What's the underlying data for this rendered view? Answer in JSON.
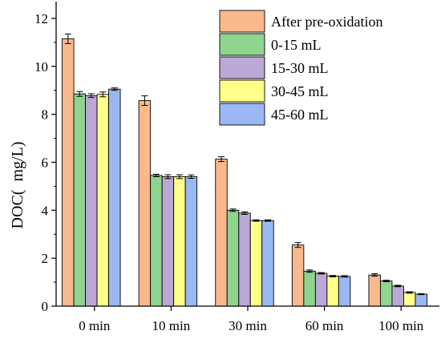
{
  "chart_data": {
    "type": "bar",
    "title": "",
    "xlabel": "",
    "ylabel": "DOC(  mg/L)",
    "ylim": [
      0,
      12.7
    ],
    "yticks": [
      0,
      2,
      4,
      6,
      8,
      10,
      12
    ],
    "grid": false,
    "legend_position": "top-right",
    "categories": [
      "0 min",
      "10 min",
      "30 min",
      "60 min",
      "100 min"
    ],
    "series": [
      {
        "name": "After pre-oxidation",
        "color": "#f9b98d",
        "values": [
          11.15,
          8.57,
          6.13,
          2.55,
          1.3
        ],
        "errors": [
          0.2,
          0.2,
          0.1,
          0.1,
          0.05
        ]
      },
      {
        "name": "0-15 mL",
        "color": "#8fd48f",
        "values": [
          8.85,
          5.45,
          4.0,
          1.46,
          1.05
        ],
        "errors": [
          0.1,
          0.05,
          0.05,
          0.05,
          0.03
        ]
      },
      {
        "name": "15-30 mL",
        "color": "#bca8d6",
        "values": [
          8.78,
          5.4,
          3.88,
          1.37,
          0.84
        ],
        "errors": [
          0.08,
          0.08,
          0.05,
          0.03,
          0.03
        ]
      },
      {
        "name": "30-45 mL",
        "color": "#ffff8a",
        "values": [
          8.83,
          5.4,
          3.57,
          1.25,
          0.57
        ],
        "errors": [
          0.1,
          0.08,
          0.03,
          0.03,
          0.03
        ]
      },
      {
        "name": "45-60 mL",
        "color": "#9ab8f3",
        "values": [
          9.05,
          5.4,
          3.57,
          1.24,
          0.5
        ],
        "errors": [
          0.05,
          0.07,
          0.03,
          0.03,
          0.02
        ]
      }
    ]
  }
}
